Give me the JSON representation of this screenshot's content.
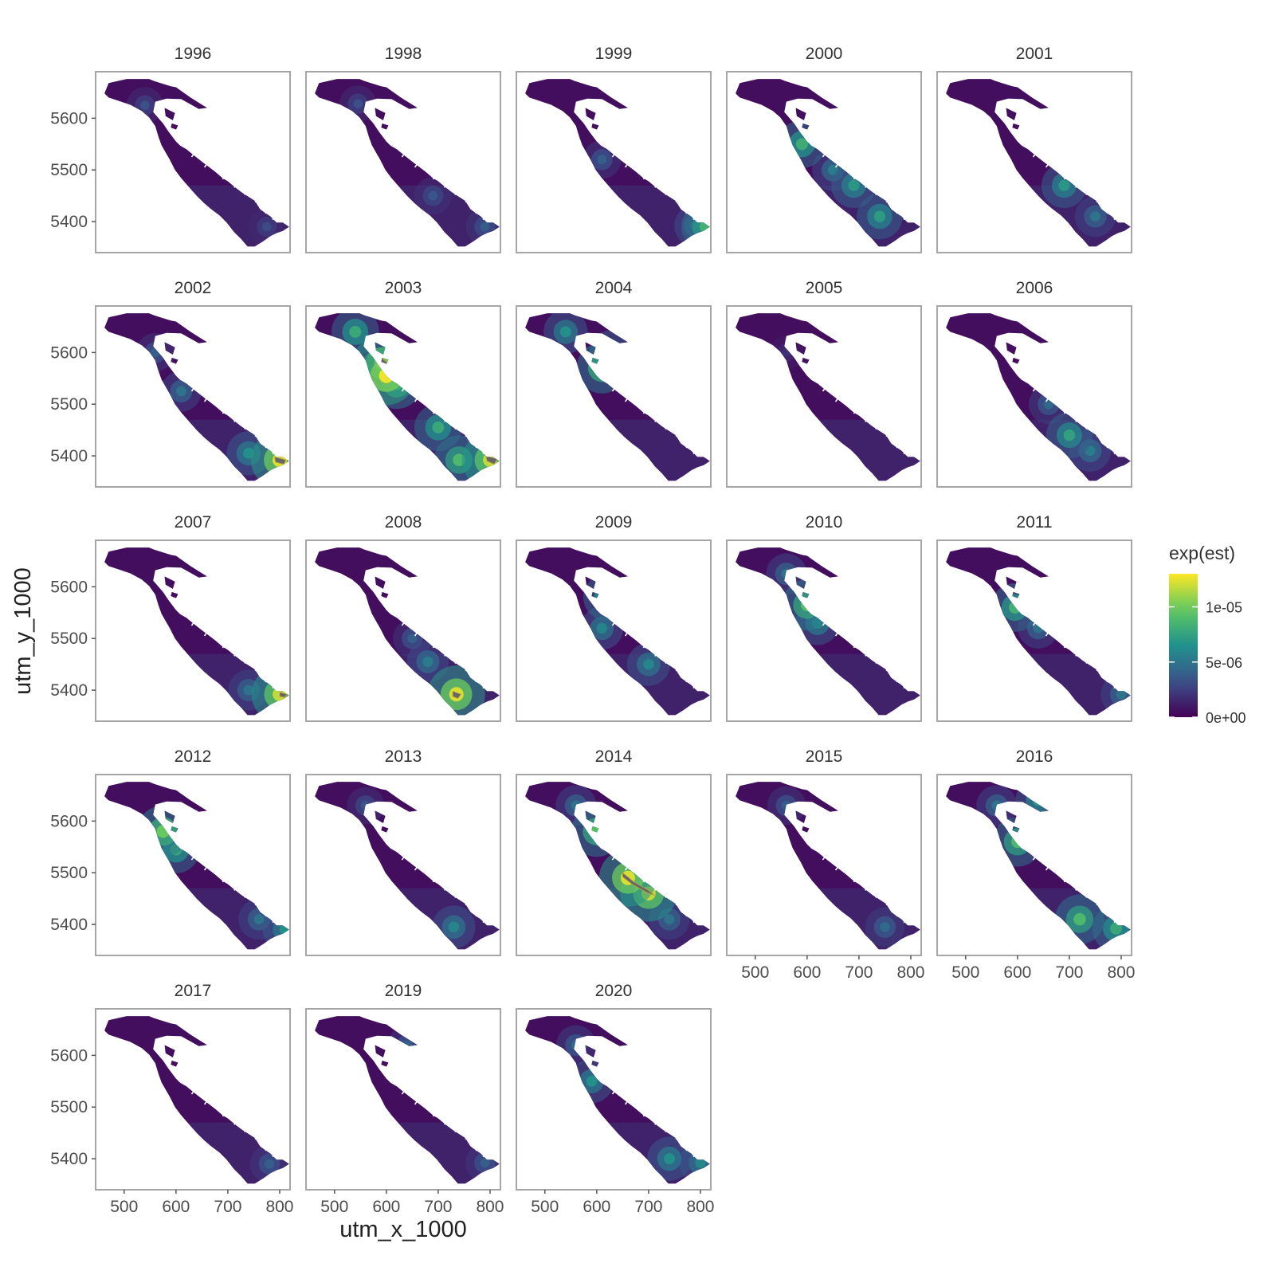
{
  "chart_data": {
    "type": "heatmap",
    "title": "",
    "xlabel": "utm_x_1000",
    "ylabel": "utm_y_1000",
    "xlim": [
      445,
      820
    ],
    "ylim": [
      5340,
      5690
    ],
    "x_ticks": [
      500,
      600,
      700,
      800
    ],
    "y_ticks": [
      5400,
      5500,
      5600
    ],
    "facets": [
      "1996",
      "1998",
      "1999",
      "2000",
      "2001",
      "2002",
      "2003",
      "2004",
      "2005",
      "2006",
      "2007",
      "2008",
      "2009",
      "2010",
      "2011",
      "2012",
      "2013",
      "2014",
      "2015",
      "2016",
      "2017",
      "2019",
      "2020"
    ],
    "ncol": 5,
    "grid": false,
    "fill_variable": "exp(est)",
    "colorscale": [
      "#440154",
      "#3b528b",
      "#21918c",
      "#5ec962",
      "#fde725"
    ],
    "legend": {
      "title": "exp(est)",
      "placement": "right",
      "range": [
        0,
        1.3e-05
      ],
      "breaks": [
        0,
        5e-06,
        1e-05
      ],
      "labels": [
        "0e+00",
        "5e-06",
        "1e-05"
      ]
    },
    "na_color": "#666666",
    "hotspots": {
      "1996": [
        [
          540,
          5625,
          0.22
        ],
        [
          775,
          5390,
          0.2
        ]
      ],
      "1998": [
        [
          545,
          5628,
          0.22
        ],
        [
          690,
          5450,
          0.25
        ],
        [
          790,
          5390,
          0.28
        ]
      ],
      "1999": [
        [
          610,
          5520,
          0.3
        ],
        [
          790,
          5392,
          0.45
        ],
        [
          810,
          5390,
          0.75
        ]
      ],
      "2000": [
        [
          590,
          5550,
          0.72
        ],
        [
          690,
          5470,
          0.6
        ],
        [
          740,
          5410,
          0.62
        ],
        [
          650,
          5500,
          0.45
        ]
      ],
      "2001": [
        [
          690,
          5470,
          0.6
        ],
        [
          750,
          5410,
          0.4
        ]
      ],
      "2002": [
        [
          560,
          5600,
          0.3
        ],
        [
          610,
          5525,
          0.4
        ],
        [
          740,
          5405,
          0.55
        ],
        [
          800,
          5392,
          1.15
        ]
      ],
      "2003": [
        [
          540,
          5640,
          0.7
        ],
        [
          590,
          5580,
          1.1
        ],
        [
          620,
          5540,
          0.85
        ],
        [
          700,
          5455,
          0.7
        ],
        [
          740,
          5392,
          0.8
        ],
        [
          800,
          5392,
          1.1
        ],
        [
          600,
          5555,
          1.2
        ]
      ],
      "2004": [
        [
          540,
          5640,
          0.55
        ],
        [
          610,
          5570,
          0.85
        ],
        [
          630,
          5600,
          0.6
        ]
      ],
      "2005": [
        [
          560,
          5600,
          0.1
        ]
      ],
      "2006": [
        [
          660,
          5500,
          0.35
        ],
        [
          700,
          5440,
          0.65
        ],
        [
          740,
          5410,
          0.45
        ]
      ],
      "2007": [
        [
          740,
          5400,
          0.4
        ],
        [
          800,
          5392,
          1.1
        ]
      ],
      "2008": [
        [
          680,
          5455,
          0.45
        ],
        [
          735,
          5392,
          1.15
        ],
        [
          650,
          5500,
          0.3
        ]
      ],
      "2009": [
        [
          620,
          5580,
          0.7
        ],
        [
          610,
          5520,
          0.5
        ],
        [
          700,
          5450,
          0.5
        ]
      ],
      "2010": [
        [
          600,
          5565,
          0.85
        ],
        [
          620,
          5530,
          0.55
        ],
        [
          560,
          5625,
          0.4
        ]
      ],
      "2011": [
        [
          595,
          5560,
          0.75
        ],
        [
          640,
          5520,
          0.4
        ],
        [
          800,
          5392,
          0.4
        ]
      ],
      "2012": [
        [
          575,
          5580,
          0.9
        ],
        [
          600,
          5545,
          0.7
        ],
        [
          760,
          5410,
          0.4
        ],
        [
          810,
          5390,
          0.55
        ]
      ],
      "2013": [
        [
          560,
          5630,
          0.25
        ],
        [
          730,
          5395,
          0.5
        ]
      ],
      "2014": [
        [
          600,
          5580,
          0.85
        ],
        [
          660,
          5490,
          1.15
        ],
        [
          700,
          5460,
          1.1
        ],
        [
          560,
          5630,
          0.4
        ],
        [
          740,
          5410,
          0.4
        ]
      ],
      "2015": [
        [
          560,
          5630,
          0.3
        ],
        [
          750,
          5395,
          0.35
        ]
      ],
      "2016": [
        [
          600,
          5560,
          0.8
        ],
        [
          640,
          5640,
          0.6
        ],
        [
          720,
          5410,
          0.8
        ],
        [
          790,
          5392,
          0.7
        ],
        [
          560,
          5630,
          0.4
        ]
      ],
      "2017": [
        [
          780,
          5390,
          0.3
        ]
      ],
      "2019": [
        [
          640,
          5620,
          0.3
        ],
        [
          790,
          5392,
          0.3
        ]
      ],
      "2020": [
        [
          590,
          5550,
          0.55
        ],
        [
          740,
          5400,
          0.55
        ],
        [
          800,
          5392,
          0.5
        ],
        [
          560,
          5620,
          0.35
        ]
      ]
    }
  }
}
